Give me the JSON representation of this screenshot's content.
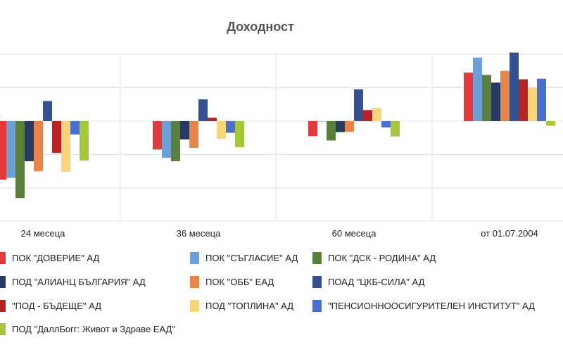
{
  "chart_data": {
    "type": "bar",
    "title": "Доходност",
    "categories": [
      "24 месеца",
      "36 месеца",
      "60 месеца",
      "от 01.07.2004"
    ],
    "ylim": [
      -30,
      20
    ],
    "grid": true,
    "legend_position": "bottom",
    "series": [
      {
        "name": "ПОК \"ДОВЕРИЕ\" АД",
        "color": "#e03a3a",
        "values": [
          -17.5,
          -8.5,
          -4.5,
          14.5
        ]
      },
      {
        "name": "ПОК \"СЪГЛАСИЕ\" АД",
        "color": "#6e9fd6",
        "values": [
          -17,
          -11,
          0,
          19
        ]
      },
      {
        "name": "ПОК \"ДСК - РОДИНА\" АД",
        "color": "#5a7f3c",
        "values": [
          -23,
          -12,
          -5.8,
          13.8
        ]
      },
      {
        "name": "ПОД \"АЛИАНЦ БЪЛГАРИЯ\" АД",
        "color": "#263a64",
        "values": [
          -12,
          -5.5,
          -3.3,
          11.5
        ]
      },
      {
        "name": "ПОК \"ОББ\" ЕАД",
        "color": "#e5854a",
        "values": [
          -15,
          -8,
          -3.2,
          15
        ]
      },
      {
        "name": "ПОАД \"ЦКБ-СИЛА\" АД",
        "color": "#33528f",
        "values": [
          6,
          6.5,
          9.5,
          20.5
        ]
      },
      {
        "name": "\"ПОД - БЪДЕЩЕ\" АД",
        "color": "#b52424",
        "values": [
          -9.5,
          1,
          3.3,
          12.5
        ]
      },
      {
        "name": "ПОД \"ТОПЛИНА\" АД",
        "color": "#f8d47a",
        "values": [
          -15.2,
          -5.3,
          4,
          10
        ]
      },
      {
        "name": "\"ПЕНСИОННООСИГУРИТЕЛЕН ИНСТИТУТ\" АД",
        "color": "#4a6fcc",
        "values": [
          -4,
          -3.5,
          -1.9,
          12.7
        ]
      },
      {
        "name": "ПОД \"ДаллБогг: Живот и Здраве ЕАД\"",
        "color": "#a5c83b",
        "values": [
          -11.8,
          -7.8,
          -4.6,
          -1.4
        ]
      }
    ]
  }
}
